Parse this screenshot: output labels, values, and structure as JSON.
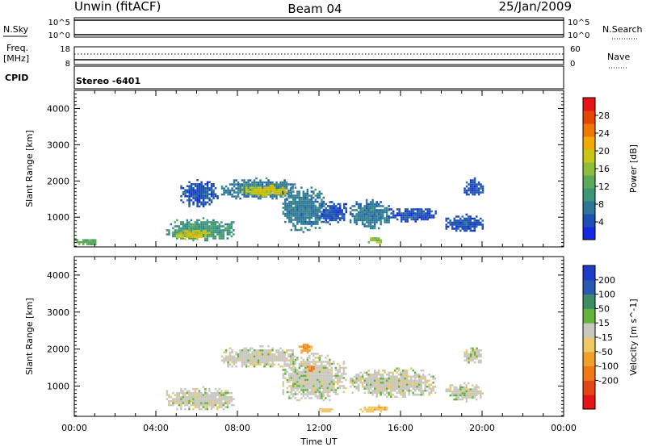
{
  "header": {
    "station": "Unwin (fitACF)",
    "beam": "Beam 04",
    "date": "25/Jan/2009"
  },
  "strip_labels": {
    "nsky": "N.Sky",
    "nsearch": "N.Search",
    "freq": "Freq.",
    "freq_unit": "[MHz]",
    "nave": "Nave",
    "cpid": "CPID",
    "cpid_value": "Stereo -6401",
    "nsky_top": "10^5",
    "nsky_bottom": "10^0",
    "nsearch_top": "10^5",
    "nsearch_bottom": "10^0",
    "freq_top": "18",
    "freq_bottom": "8",
    "nave_top": "60",
    "nave_bottom": "0"
  },
  "colors": {
    "axis": "#000000",
    "ground_scatter": "#c0c0b8"
  },
  "chart_data": [
    {
      "type": "heatmap",
      "panel": "power",
      "xlabel": "",
      "ylabel": "Slant Range [km]",
      "x_range_hours": [
        0,
        24
      ],
      "y_range_km": [
        180,
        4500
      ],
      "y_ticks": [
        1000,
        2000,
        3000,
        4000
      ],
      "colorbar": {
        "label": "Power [dB]",
        "ticks": [
          "4",
          "8",
          "12",
          "16",
          "20",
          "24",
          "28"
        ],
        "colors": [
          "#1428e6",
          "#1e50b4",
          "#2d7896",
          "#3c9678",
          "#5aaa5a",
          "#8cbe3c",
          "#c8c814",
          "#f0aa00",
          "#f07800",
          "#e64600",
          "#e61414"
        ]
      },
      "regions": [
        {
          "t_start": 0.0,
          "t_end": 1.1,
          "r_low": 250,
          "r_high": 450,
          "level": 4
        },
        {
          "t_start": 4.5,
          "t_end": 7.8,
          "r_low": 350,
          "r_high": 1000,
          "level": 3
        },
        {
          "t_start": 5.0,
          "t_end": 6.6,
          "r_low": 400,
          "r_high": 700,
          "level": 6
        },
        {
          "t_start": 5.2,
          "t_end": 7.0,
          "r_low": 1300,
          "r_high": 2050,
          "level": 1
        },
        {
          "t_start": 7.2,
          "t_end": 10.8,
          "r_low": 1500,
          "r_high": 2100,
          "level": 2
        },
        {
          "t_start": 8.2,
          "t_end": 10.4,
          "r_low": 1600,
          "r_high": 1900,
          "level": 6
        },
        {
          "t_start": 10.2,
          "t_end": 12.2,
          "r_low": 600,
          "r_high": 1900,
          "level": 2
        },
        {
          "t_start": 12.0,
          "t_end": 13.3,
          "r_low": 800,
          "r_high": 1500,
          "level": 1
        },
        {
          "t_start": 13.5,
          "t_end": 15.4,
          "r_low": 700,
          "r_high": 1500,
          "level": 2
        },
        {
          "t_start": 14.3,
          "t_end": 15.0,
          "r_low": 300,
          "r_high": 500,
          "level": 5
        },
        {
          "t_start": 15.4,
          "t_end": 17.7,
          "r_low": 900,
          "r_high": 1300,
          "level": 1
        },
        {
          "t_start": 18.2,
          "t_end": 20.0,
          "r_low": 600,
          "r_high": 1100,
          "level": 1
        },
        {
          "t_start": 19.1,
          "t_end": 20.0,
          "r_low": 1600,
          "r_high": 2100,
          "level": 1
        }
      ]
    },
    {
      "type": "heatmap",
      "panel": "velocity",
      "xlabel": "Time UT",
      "ylabel": "Slant Range [km]",
      "x_range_hours": [
        0,
        24
      ],
      "y_range_km": [
        180,
        4500
      ],
      "x_ticks": [
        "00:00",
        "04:00",
        "08:00",
        "12:00",
        "16:00",
        "20:00",
        "00:00"
      ],
      "y_ticks": [
        1000,
        2000,
        3000,
        4000
      ],
      "colorbar": {
        "label": "Velocity [m s^-1]",
        "ticks": [
          "200",
          "100",
          "50",
          "15",
          "-15",
          "-50",
          "-100",
          "-200"
        ],
        "colors": [
          "#1e3cc8",
          "#285ab4",
          "#3c8c64",
          "#64b43c",
          "#c8c8c0",
          "#f0c864",
          "#f0a028",
          "#f07814",
          "#e64614",
          "#e61414"
        ]
      },
      "regions": [
        {
          "t_start": 4.5,
          "t_end": 7.8,
          "r_low": 350,
          "r_high": 1000,
          "level": 4
        },
        {
          "t_start": 7.2,
          "t_end": 10.8,
          "r_low": 1500,
          "r_high": 2100,
          "level": 4
        },
        {
          "t_start": 10.2,
          "t_end": 13.3,
          "r_low": 600,
          "r_high": 1900,
          "level": 4
        },
        {
          "t_start": 11.4,
          "t_end": 11.8,
          "r_low": 1400,
          "r_high": 1600,
          "level": 7
        },
        {
          "t_start": 11.0,
          "t_end": 11.6,
          "r_low": 1900,
          "r_high": 2200,
          "level": 6
        },
        {
          "t_start": 13.5,
          "t_end": 17.7,
          "r_low": 700,
          "r_high": 1500,
          "level": 4
        },
        {
          "t_start": 14.0,
          "t_end": 15.3,
          "r_low": 300,
          "r_high": 500,
          "level": 5
        },
        {
          "t_start": 12.0,
          "t_end": 12.6,
          "r_low": 300,
          "r_high": 450,
          "level": 5
        },
        {
          "t_start": 18.2,
          "t_end": 20.0,
          "r_low": 600,
          "r_high": 1100,
          "level": 4
        },
        {
          "t_start": 19.1,
          "t_end": 20.0,
          "r_low": 1600,
          "r_high": 2100,
          "level": 4
        }
      ]
    }
  ]
}
